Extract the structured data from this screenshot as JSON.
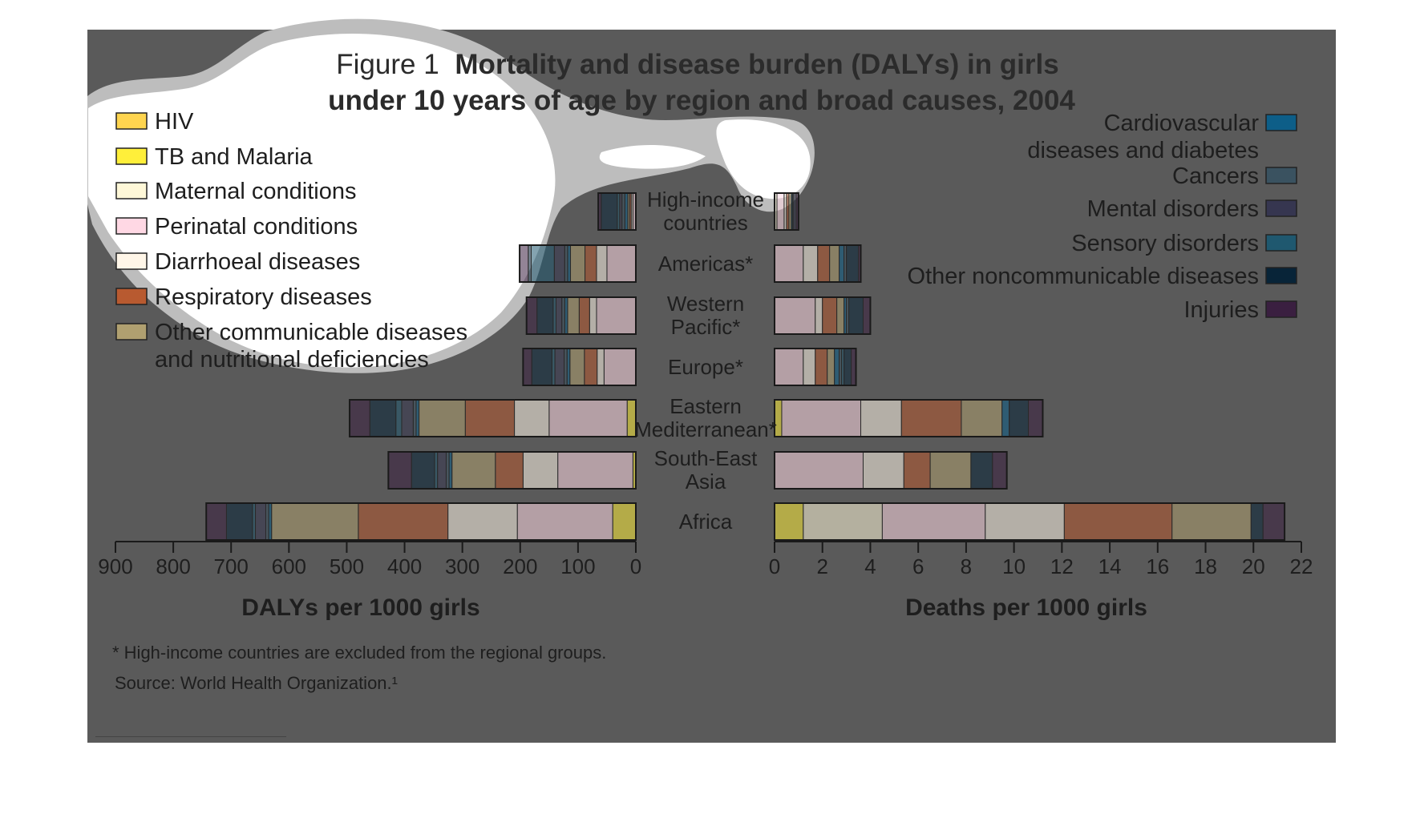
{
  "figure": {
    "title_prefix": "Figure 1",
    "title_line1": "Mortality and disease burden (DALYs) in girls",
    "title_line2": "under 10 years of age by region and broad causes, 2004",
    "footnote": "* High-income countries are excluded from the regional groups.",
    "source": "Source: World Health Organization.¹"
  },
  "colors": {
    "background_panel": "#5a5a5a",
    "blob": "#ffffff",
    "blob_edge": "#bdbdbd",
    "text": "#1e1e1e",
    "bar_outline": "#2a2a2a"
  },
  "legend_left": [
    {
      "label": "HIV",
      "color": "#ffd54f",
      "key": "hiv"
    },
    {
      "label": "TB and Malaria",
      "color": "#ffef3a",
      "key": "tb"
    },
    {
      "label": "Maternal conditions",
      "color": "#fff8d8",
      "key": "maternal"
    },
    {
      "label": "Perinatal conditions",
      "color": "#ffd8e4",
      "key": "perinatal"
    },
    {
      "label": "Diarrhoeal diseases",
      "color": "#fff6e8",
      "key": "diarrhoeal"
    },
    {
      "label": "Respiratory diseases",
      "color": "#b85a30",
      "key": "respiratory"
    },
    {
      "label": "Other communicable diseases",
      "label2": "and nutritional deficiencies",
      "color": "#b0a070",
      "key": "othercomm"
    }
  ],
  "legend_right": [
    {
      "label": "Cardiovascular",
      "label2": "diseases and diabetes",
      "color": "#0d5e88",
      "key": "cardio"
    },
    {
      "label": "Cancers",
      "color": "#3a5260",
      "key": "cancers"
    },
    {
      "label": "Mental disorders",
      "color": "#363650",
      "key": "mental"
    },
    {
      "label": "Sensory disorders",
      "color": "#1f586f",
      "key": "sensory"
    },
    {
      "label": "Other noncommunicable diseases",
      "color": "#082438",
      "key": "othernc"
    },
    {
      "label": "Injuries",
      "color": "#3a1f40",
      "key": "injuries"
    }
  ],
  "chart_data": [
    {
      "type": "bar",
      "orientation": "horizontal",
      "stacked": true,
      "direction": "right-to-left",
      "xlabel": "DALYs per 1000 girls",
      "xlim": [
        0,
        900
      ],
      "xticks": [
        900,
        800,
        700,
        600,
        500,
        400,
        300,
        200,
        100,
        0
      ],
      "categories": [
        "High-income countries",
        "Americas*",
        "Western Pacific*",
        "Europe*",
        "Eastern Mediterranean*",
        "South-East Asia",
        "Africa"
      ],
      "series": [
        {
          "name": "HIV",
          "key": "hiv",
          "values": [
            0,
            0,
            0,
            0,
            0,
            0,
            0
          ]
        },
        {
          "name": "TB and Malaria",
          "key": "tb",
          "values": [
            0,
            0,
            0,
            0,
            15,
            5,
            40
          ]
        },
        {
          "name": "Maternal conditions",
          "key": "maternal",
          "values": [
            0,
            0,
            0,
            0,
            0,
            0,
            0
          ]
        },
        {
          "name": "Perinatal conditions",
          "key": "perinatal",
          "values": [
            5,
            50,
            68,
            55,
            135,
            130,
            165
          ]
        },
        {
          "name": "Diarrhoeal diseases",
          "key": "diarrhoeal",
          "values": [
            3,
            18,
            12,
            12,
            60,
            60,
            120
          ]
        },
        {
          "name": "Respiratory diseases",
          "key": "respiratory",
          "values": [
            3,
            20,
            18,
            22,
            85,
            48,
            155
          ]
        },
        {
          "name": "Other communicable diseases and nutritional deficiencies",
          "key": "othercomm",
          "values": [
            3,
            25,
            20,
            25,
            80,
            75,
            150
          ]
        },
        {
          "name": "Cardiovascular diseases and diabetes",
          "key": "cardio",
          "values": [
            5,
            5,
            5,
            5,
            5,
            5,
            5
          ]
        },
        {
          "name": "Cancers",
          "key": "cancers",
          "values": [
            5,
            5,
            5,
            5,
            5,
            5,
            5
          ]
        },
        {
          "name": "Mental disorders",
          "key": "mental",
          "values": [
            4,
            18,
            10,
            16,
            20,
            15,
            18
          ]
        },
        {
          "name": "Sensory disorders",
          "key": "sensory",
          "values": [
            4,
            40,
            5,
            5,
            10,
            5,
            5
          ]
        },
        {
          "name": "Other noncommunicable diseases",
          "key": "othernc",
          "values": [
            28,
            5,
            28,
            35,
            45,
            40,
            45
          ]
        },
        {
          "name": "Injuries",
          "key": "injuries",
          "values": [
            5,
            15,
            18,
            15,
            35,
            40,
            35
          ]
        }
      ]
    },
    {
      "type": "bar",
      "orientation": "horizontal",
      "stacked": true,
      "direction": "left-to-right",
      "xlabel": "Deaths per 1000 girls",
      "xlim": [
        0,
        22
      ],
      "xticks": [
        0,
        2,
        4,
        6,
        8,
        10,
        12,
        14,
        16,
        18,
        20,
        22
      ],
      "categories": [
        "High-income countries",
        "Americas*",
        "Western Pacific*",
        "Europe*",
        "Eastern Mediterranean*",
        "South-East Asia",
        "Africa"
      ],
      "series": [
        {
          "name": "HIV",
          "key": "hiv",
          "values": [
            0,
            0,
            0,
            0,
            0,
            0,
            0
          ]
        },
        {
          "name": "TB and Malaria",
          "key": "tb",
          "values": [
            0,
            0,
            0,
            0,
            0.3,
            0,
            1.2
          ]
        },
        {
          "name": "Maternal conditions",
          "key": "maternal",
          "values": [
            0.1,
            0,
            0,
            0,
            0,
            0,
            3.3
          ]
        },
        {
          "name": "Perinatal conditions",
          "key": "perinatal",
          "values": [
            0.3,
            1.2,
            1.7,
            1.2,
            3.3,
            3.7,
            4.3
          ]
        },
        {
          "name": "Diarrhoeal diseases",
          "key": "diarrhoeal",
          "values": [
            0.1,
            0.6,
            0.3,
            0.5,
            1.7,
            1.7,
            3.3
          ]
        },
        {
          "name": "Respiratory diseases",
          "key": "respiratory",
          "values": [
            0.1,
            0.5,
            0.6,
            0.5,
            2.5,
            1.1,
            4.5
          ]
        },
        {
          "name": "Other communicable diseases and nutritional deficiencies",
          "key": "othercomm",
          "values": [
            0.1,
            0.4,
            0.3,
            0.3,
            1.7,
            1.7,
            3.3
          ]
        },
        {
          "name": "Cardiovascular diseases and diabetes",
          "key": "cardio",
          "values": [
            0.05,
            0.2,
            0.1,
            0.2,
            0.3,
            0,
            0
          ]
        },
        {
          "name": "Cancers",
          "key": "cancers",
          "values": [
            0.05,
            0.1,
            0.1,
            0.1,
            0,
            0,
            0
          ]
        },
        {
          "name": "Mental disorders",
          "key": "mental",
          "values": [
            0.1,
            0,
            0,
            0,
            0,
            0,
            0
          ]
        },
        {
          "name": "Sensory disorders",
          "key": "sensory",
          "values": [
            0,
            0,
            0,
            0.1,
            0,
            0,
            0
          ]
        },
        {
          "name": "Other noncommunicable diseases",
          "key": "othernc",
          "values": [
            0,
            0.5,
            0.6,
            0.3,
            0.8,
            0.9,
            0.5
          ]
        },
        {
          "name": "Injuries",
          "key": "injuries",
          "values": [
            0.1,
            0.1,
            0.3,
            0.2,
            0.6,
            0.6,
            0.9
          ]
        }
      ]
    }
  ]
}
